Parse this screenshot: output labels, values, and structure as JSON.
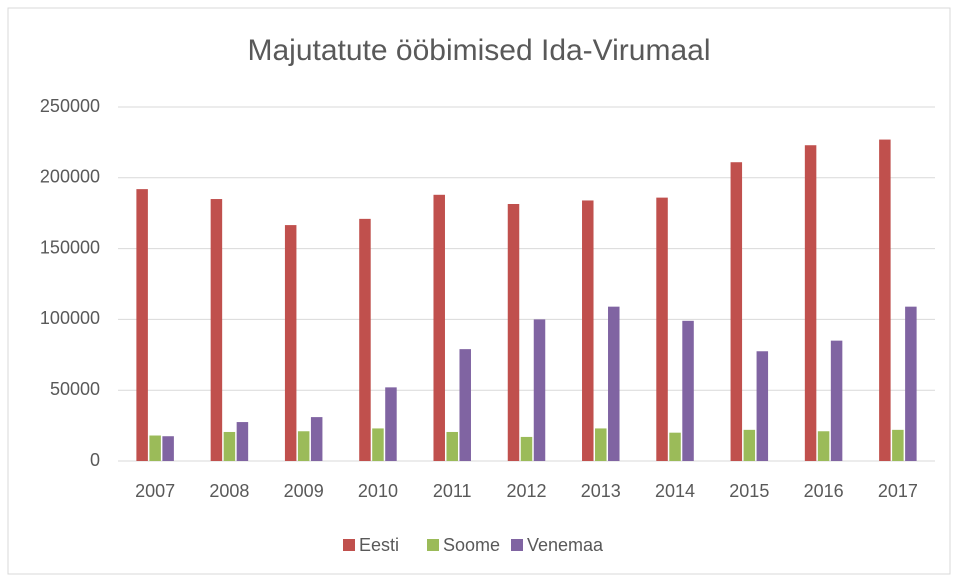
{
  "chart_data": {
    "type": "bar",
    "title": "Majutatute ööbimised Ida-Virumaal",
    "categories": [
      "2007",
      "2008",
      "2009",
      "2010",
      "2011",
      "2012",
      "2013",
      "2014",
      "2015",
      "2016",
      "2017"
    ],
    "series": [
      {
        "name": "Eesti",
        "color": "#c0504d",
        "values": [
          192000,
          185000,
          166600,
          171000,
          188000,
          181500,
          184000,
          186000,
          211000,
          223000,
          227000
        ]
      },
      {
        "name": "Soome",
        "color": "#9bbb59",
        "values": [
          18000,
          20500,
          21000,
          23000,
          20500,
          17000,
          23000,
          20000,
          22000,
          21000,
          22000
        ]
      },
      {
        "name": "Venemaa",
        "color": "#8064a2",
        "values": [
          17500,
          27500,
          31000,
          52000,
          79000,
          100000,
          109000,
          99000,
          77500,
          85000,
          109000
        ]
      }
    ],
    "ylim": [
      0,
      250000
    ],
    "yticks": [
      0,
      50000,
      100000,
      150000,
      200000,
      250000
    ],
    "grid": true,
    "legend": "bottom"
  }
}
